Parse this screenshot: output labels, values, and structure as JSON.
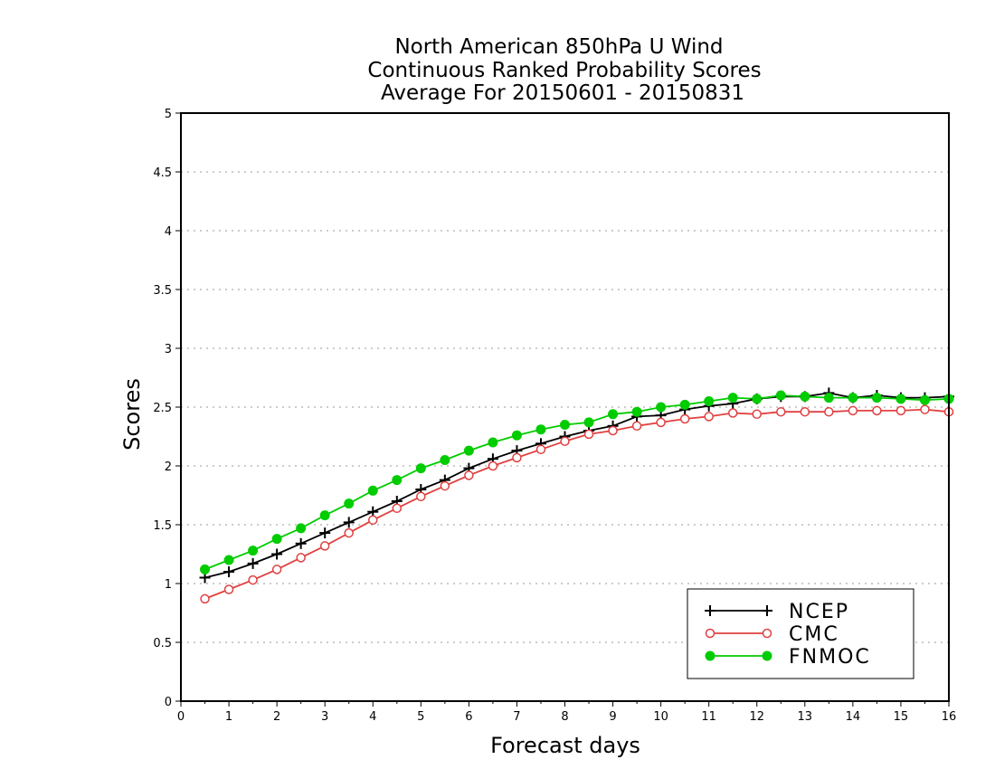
{
  "chart_data": {
    "type": "line",
    "title_lines": [
      "North American 850hPa U Wind",
      "Continuous Ranked Probability Scores",
      "Average For 20150601 - 20150831"
    ],
    "xlabel": "Forecast days",
    "ylabel": "Scores",
    "xlim": [
      0,
      16
    ],
    "ylim": [
      0,
      5
    ],
    "xticks": [
      "0",
      "1",
      "2",
      "3",
      "4",
      "5",
      "6",
      "7",
      "8",
      "9",
      "10",
      "11",
      "12",
      "13",
      "14",
      "15",
      "16"
    ],
    "yticks": [
      "0",
      "0.5",
      "1",
      "1.5",
      "2",
      "2.5",
      "3",
      "3.5",
      "4",
      "4.5",
      "5"
    ],
    "grid": "horizontal dotted",
    "legend_position": "bottom-right",
    "x": [
      0.5,
      1,
      1.5,
      2,
      2.5,
      3,
      3.5,
      4,
      4.5,
      5,
      5.5,
      6,
      6.5,
      7,
      7.5,
      8,
      8.5,
      9,
      9.5,
      10,
      10.5,
      11,
      11.5,
      12,
      12.5,
      13,
      13.5,
      14,
      14.5,
      15,
      15.5,
      16
    ],
    "series": [
      {
        "name": "NCEP",
        "color": "#000000",
        "marker": "plus",
        "values": [
          1.05,
          1.1,
          1.17,
          1.25,
          1.34,
          1.43,
          1.52,
          1.61,
          1.7,
          1.8,
          1.88,
          1.98,
          2.06,
          2.13,
          2.19,
          2.25,
          2.3,
          2.34,
          2.42,
          2.43,
          2.48,
          2.51,
          2.53,
          2.57,
          2.59,
          2.59,
          2.62,
          2.58,
          2.6,
          2.58,
          2.58,
          2.59
        ]
      },
      {
        "name": "CMC",
        "color": "#e04040",
        "marker": "open-circle",
        "values": [
          0.87,
          0.95,
          1.03,
          1.12,
          1.22,
          1.32,
          1.43,
          1.54,
          1.64,
          1.74,
          1.83,
          1.92,
          2.0,
          2.07,
          2.14,
          2.21,
          2.27,
          2.3,
          2.34,
          2.37,
          2.4,
          2.42,
          2.45,
          2.44,
          2.46,
          2.46,
          2.46,
          2.47,
          2.47,
          2.47,
          2.48,
          2.46
        ]
      },
      {
        "name": "FNMOC",
        "color": "#00cc00",
        "marker": "filled-circle",
        "values": [
          1.12,
          1.2,
          1.28,
          1.38,
          1.47,
          1.58,
          1.68,
          1.79,
          1.88,
          1.98,
          2.05,
          2.13,
          2.2,
          2.26,
          2.31,
          2.35,
          2.37,
          2.44,
          2.46,
          2.5,
          2.52,
          2.55,
          2.58,
          2.57,
          2.6,
          2.59,
          2.58,
          2.58,
          2.58,
          2.57,
          2.56,
          2.57
        ]
      }
    ]
  }
}
